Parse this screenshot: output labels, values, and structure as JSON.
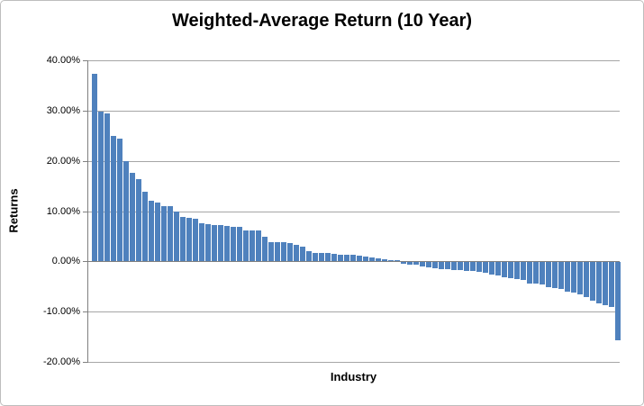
{
  "chart": {
    "title": "Weighted-Average Return (10 Year)",
    "y_axis_title": "Returns",
    "x_axis_title": "Industry"
  },
  "chart_data": {
    "type": "bar",
    "title": "Weighted-Average Return (10 Year)",
    "xlabel": "Industry",
    "ylabel": "Returns",
    "ylim": [
      -20,
      40
    ],
    "y_ticks": [
      40,
      30,
      20,
      10,
      0,
      -10,
      -20
    ],
    "y_tick_labels": [
      "40.00%",
      "30.00%",
      "20.00%",
      "10.00%",
      "0.00%",
      "-10.00%",
      "-20.00%"
    ],
    "x_tick_labels_visible": false,
    "grid": true,
    "legend": false,
    "bar_color": "#4f81bd",
    "gridline_color": "#a6a6a6",
    "axis_color": "#808080",
    "sorted": "descending",
    "values_unit": "percent",
    "values": [
      37.4,
      29.8,
      29.4,
      25.0,
      24.4,
      19.9,
      17.6,
      16.3,
      13.9,
      12.1,
      11.7,
      11.0,
      10.9,
      9.9,
      8.8,
      8.7,
      8.5,
      7.5,
      7.4,
      7.3,
      7.2,
      7.0,
      6.9,
      6.8,
      6.2,
      6.1,
      6.1,
      4.9,
      3.9,
      3.8,
      3.8,
      3.7,
      3.2,
      3.0,
      2.0,
      1.7,
      1.6,
      1.6,
      1.5,
      1.4,
      1.4,
      1.3,
      1.1,
      0.9,
      0.7,
      0.6,
      0.5,
      0.3,
      0.2,
      -0.3,
      -0.4,
      -0.5,
      -0.8,
      -1.1,
      -1.2,
      -1.3,
      -1.4,
      -1.5,
      -1.6,
      -1.7,
      -1.8,
      -1.9,
      -2.1,
      -2.4,
      -2.7,
      -3.0,
      -3.2,
      -3.4,
      -3.6,
      -4.2,
      -4.3,
      -4.4,
      -4.9,
      -5.2,
      -5.4,
      -5.9,
      -6.1,
      -6.4,
      -6.9,
      -7.6,
      -8.1,
      -8.6,
      -8.9,
      -15.6
    ]
  }
}
